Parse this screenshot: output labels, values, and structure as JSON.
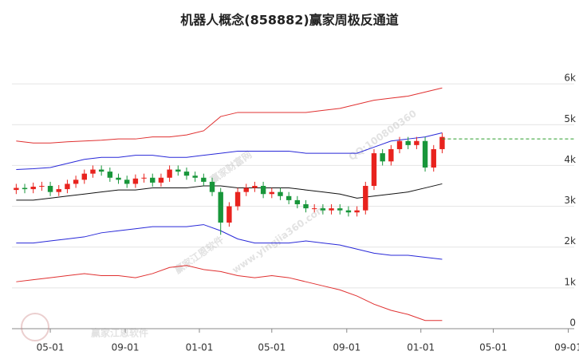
{
  "chart_data": {
    "type": "candlestick",
    "title": "机器人概念(858882)赢家周极反通道",
    "x": [
      -8,
      -6,
      -4,
      -2,
      0,
      2,
      4,
      6,
      8,
      10,
      12,
      14,
      16,
      18,
      20,
      22,
      24,
      26,
      28,
      30,
      32,
      34,
      36,
      38,
      40,
      42,
      44,
      46,
      48,
      50,
      52,
      54,
      56,
      58,
      60,
      62,
      64,
      66,
      68,
      70,
      72,
      74,
      76,
      78,
      80,
      82,
      84,
      86,
      88,
      90,
      92
    ],
    "open": [
      3400,
      3450,
      3420,
      3480,
      3500,
      3350,
      3420,
      3550,
      3650,
      3800,
      3900,
      3850,
      3700,
      3650,
      3550,
      3680,
      3700,
      3580,
      3700,
      3900,
      3850,
      3750,
      3700,
      3600,
      3350,
      2600,
      3000,
      3350,
      3450,
      3500,
      3300,
      3350,
      3250,
      3150,
      3050,
      2950,
      2950,
      2900,
      2950,
      2900,
      2850,
      2900,
      3500,
      4300,
      4100,
      4400,
      4600,
      4500,
      4600,
      3950,
      4400
    ],
    "high": [
      3550,
      3550,
      3580,
      3600,
      3600,
      3520,
      3650,
      3750,
      3900,
      4000,
      4000,
      3950,
      3800,
      3750,
      3780,
      3800,
      3800,
      3800,
      4000,
      4000,
      3950,
      3850,
      3800,
      3700,
      3450,
      3100,
      3450,
      3550,
      3600,
      3600,
      3450,
      3450,
      3350,
      3250,
      3150,
      3050,
      3050,
      3050,
      3050,
      3000,
      3000,
      3600,
      4400,
      4400,
      4500,
      4700,
      4700,
      4700,
      4700,
      4500,
      4800
    ],
    "low": [
      3300,
      3320,
      3320,
      3380,
      3250,
      3250,
      3320,
      3450,
      3550,
      3700,
      3750,
      3600,
      3550,
      3450,
      3450,
      3580,
      3480,
      3480,
      3600,
      3750,
      3650,
      3600,
      3500,
      3250,
      2300,
      2500,
      2900,
      3250,
      3350,
      3200,
      3200,
      3150,
      3050,
      2950,
      2850,
      2850,
      2800,
      2800,
      2800,
      2750,
      2750,
      2800,
      3400,
      4000,
      4000,
      4300,
      4400,
      4400,
      3850,
      3850,
      4300
    ],
    "close": [
      3450,
      3420,
      3480,
      3500,
      3350,
      3420,
      3550,
      3650,
      3800,
      3900,
      3850,
      3700,
      3650,
      3550,
      3680,
      3700,
      3580,
      3700,
      3900,
      3850,
      3750,
      3700,
      3600,
      3350,
      2600,
      3000,
      3350,
      3450,
      3500,
      3300,
      3350,
      3250,
      3150,
      3050,
      2950,
      2950,
      2900,
      2950,
      2900,
      2850,
      2900,
      3500,
      4300,
      4100,
      4400,
      4600,
      4500,
      4600,
      3950,
      4400,
      4700
    ],
    "up_color": "#e8231e",
    "down_color": "#18963a",
    "bands": {
      "x": [
        -8,
        -4,
        0,
        4,
        8,
        12,
        16,
        20,
        24,
        28,
        32,
        36,
        40,
        44,
        48,
        52,
        56,
        60,
        64,
        68,
        72,
        76,
        80,
        84,
        88,
        92
      ],
      "series": [
        {
          "color": "#e03030",
          "values": [
            4600,
            4550,
            4550,
            4580,
            4600,
            4620,
            4650,
            4650,
            4700,
            4700,
            4750,
            4850,
            5200,
            5300,
            5300,
            5300,
            5300,
            5300,
            5350,
            5400,
            5500,
            5600,
            5650,
            5700,
            5800,
            5900
          ]
        },
        {
          "color": "#2828d8",
          "values": [
            3900,
            3920,
            3950,
            4050,
            4150,
            4200,
            4200,
            4250,
            4250,
            4200,
            4200,
            4250,
            4300,
            4350,
            4350,
            4350,
            4350,
            4300,
            4300,
            4300,
            4300,
            4450,
            4600,
            4650,
            4700,
            4800
          ]
        },
        {
          "color": "#111111",
          "values": [
            3150,
            3150,
            3200,
            3250,
            3300,
            3350,
            3400,
            3400,
            3450,
            3450,
            3450,
            3500,
            3500,
            3450,
            3450,
            3450,
            3450,
            3400,
            3350,
            3300,
            3200,
            3250,
            3300,
            3350,
            3450,
            3550
          ]
        },
        {
          "color": "#2828d8",
          "values": [
            2100,
            2100,
            2150,
            2200,
            2250,
            2350,
            2400,
            2450,
            2500,
            2500,
            2500,
            2550,
            2400,
            2200,
            2100,
            2100,
            2100,
            2150,
            2100,
            2050,
            1950,
            1850,
            1800,
            1800,
            1750,
            1700
          ]
        },
        {
          "color": "#e03030",
          "values": [
            1150,
            1200,
            1250,
            1300,
            1350,
            1300,
            1300,
            1250,
            1350,
            1500,
            1550,
            1450,
            1400,
            1300,
            1250,
            1300,
            1250,
            1150,
            1050,
            950,
            800,
            600,
            450,
            350,
            200,
            200
          ]
        }
      ]
    },
    "reference_line": {
      "value": 4650,
      "color": "#2a9d2a"
    },
    "xlim": [
      -9,
      123
    ],
    "xticks": [
      {
        "value": 0,
        "label": "05-01"
      },
      {
        "value": 17.6,
        "label": "09-01"
      },
      {
        "value": 35,
        "label": "01-01"
      },
      {
        "value": 52,
        "label": "05-01"
      },
      {
        "value": 69.6,
        "label": "09-01"
      },
      {
        "value": 87,
        "label": "01-01"
      },
      {
        "value": 104,
        "label": "05-01"
      },
      {
        "value": 121.6,
        "label": "09-01"
      }
    ],
    "ylim": [
      0,
      7000
    ],
    "yticks": [
      0,
      {
        "value": 1000,
        "label": "1k"
      },
      {
        "value": 2000,
        "label": "2k"
      },
      {
        "value": 3000,
        "label": "3k"
      },
      {
        "value": 4000,
        "label": "4k"
      },
      {
        "value": 5000,
        "label": "5k"
      },
      {
        "value": 6000,
        "label": "6k"
      }
    ],
    "grid": true,
    "watermarks": [
      "赢家财富网",
      "赢家江恩软件",
      "www.yingjia360.com",
      "QQ:100800360",
      "赢家江恩软件"
    ]
  }
}
